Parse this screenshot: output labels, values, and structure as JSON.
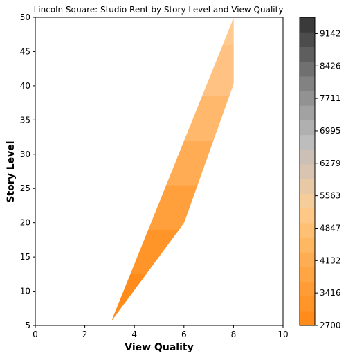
{
  "chart_data": {
    "type": "filled-contour",
    "title": "Lincoln Square: Studio Rent by Story Level and View Quality",
    "xlabel": "View Quality",
    "ylabel": "Story Level",
    "xlim": [
      0,
      10
    ],
    "ylim": [
      5,
      50
    ],
    "xticks": [
      "0",
      "2",
      "4",
      "6",
      "8",
      "10"
    ],
    "yticks": [
      "5",
      "10",
      "15",
      "20",
      "25",
      "30",
      "35",
      "40",
      "45",
      "50"
    ],
    "grid": false,
    "region": {
      "corners": [
        {
          "view": 3.1,
          "story": 5.8
        },
        {
          "view": 6.0,
          "story": 20.0
        },
        {
          "view": 8.0,
          "story": 40.3
        },
        {
          "view": 8.0,
          "story": 49.8
        }
      ]
    },
    "bands": [
      {
        "story_from": 5.8,
        "story_to": 12.5,
        "rent": 2900,
        "color": "#ff8c1a"
      },
      {
        "story_from": 12.5,
        "story_to": 19.0,
        "rent": 3200,
        "color": "#ff9429"
      },
      {
        "story_from": 19.0,
        "story_to": 25.5,
        "rent": 3500,
        "color": "#ffa03d"
      },
      {
        "story_from": 25.5,
        "story_to": 32.0,
        "rent": 3900,
        "color": "#ffac55"
      },
      {
        "story_from": 32.0,
        "story_to": 38.5,
        "rent": 4300,
        "color": "#ffb86c"
      },
      {
        "story_from": 38.5,
        "story_to": 46.0,
        "rent": 4700,
        "color": "#ffc282"
      },
      {
        "story_from": 46.0,
        "story_to": 49.8,
        "rent": 5000,
        "color": "#ffca8f"
      }
    ],
    "colorbar": {
      "ticks": [
        "2700",
        "3416",
        "4132",
        "4847",
        "5563",
        "6279",
        "6995",
        "7711",
        "8426",
        "9142"
      ],
      "tick_values": [
        2700,
        3416,
        4132,
        4847,
        5563,
        6279,
        6995,
        7711,
        8426,
        9142
      ],
      "range": [
        2700,
        9500
      ],
      "colors": [
        "#ff8c1a",
        "#ff9429",
        "#ff9c35",
        "#ffa543",
        "#ffad52",
        "#ffb762",
        "#ffc073",
        "#ffc886",
        "#f5cd9a",
        "#e8c9a6",
        "#d9c4b1",
        "#ccc0b6",
        "#bebdbd",
        "#b0b0b0",
        "#a2a2a2",
        "#929292",
        "#828282",
        "#707070",
        "#5e5e5e",
        "#4c4c4c",
        "#3a3a3a"
      ]
    }
  }
}
